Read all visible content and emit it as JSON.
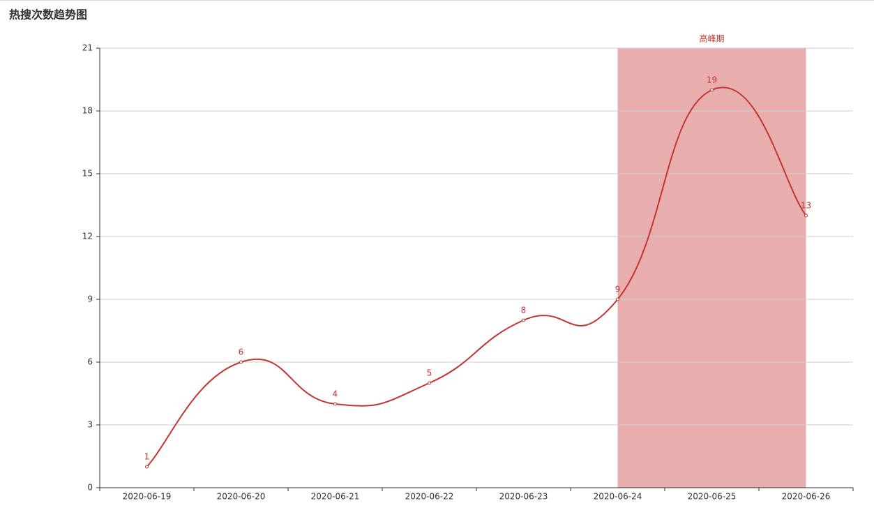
{
  "chart_data": {
    "type": "line",
    "title": "热搜次数趋势图",
    "categories": [
      "2020-06-19",
      "2020-06-20",
      "2020-06-21",
      "2020-06-22",
      "2020-06-23",
      "2020-06-24",
      "2020-06-25",
      "2020-06-26"
    ],
    "values": [
      1,
      6,
      4,
      5,
      8,
      9,
      19,
      13
    ],
    "color": "#c23531",
    "ylim": [
      0,
      21
    ],
    "yticks": [
      0,
      3,
      6,
      9,
      12,
      15,
      18,
      21
    ],
    "grid": true,
    "smooth": true,
    "mark_area": {
      "label": "高峰期",
      "from": "2020-06-24",
      "to": "2020-06-26",
      "color": "#e8aeae"
    }
  }
}
